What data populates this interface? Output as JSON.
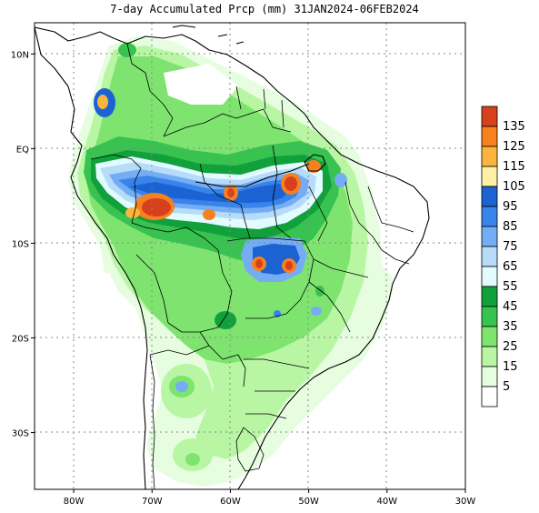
{
  "title": "7-day Accumulated Prcp (mm) 31JAN2024-06FEB2024",
  "x_ticks": [
    {
      "label": "80W",
      "lon": -80
    },
    {
      "label": "70W",
      "lon": -70
    },
    {
      "label": "60W",
      "lon": -60
    },
    {
      "label": "50W",
      "lon": -50
    },
    {
      "label": "40W",
      "lon": -40
    },
    {
      "label": "30W",
      "lon": -30
    }
  ],
  "y_ticks": [
    {
      "label": "10N",
      "lat": 10
    },
    {
      "label": "EQ",
      "lat": 0
    },
    {
      "label": "10S",
      "lat": -10
    },
    {
      "label": "20S",
      "lat": -20
    },
    {
      "label": "30S",
      "lat": -30
    }
  ],
  "legend": {
    "levels": [
      {
        "label": "135",
        "color": "#d7401c"
      },
      {
        "label": "125",
        "color": "#f7801f"
      },
      {
        "label": "115",
        "color": "#fbb43d"
      },
      {
        "label": "105",
        "color": "#fff0a4"
      },
      {
        "label": "95",
        "color": "#1b62d3"
      },
      {
        "label": "85",
        "color": "#3984ea"
      },
      {
        "label": "75",
        "color": "#74adf4"
      },
      {
        "label": "65",
        "color": "#b6dcfa"
      },
      {
        "label": "55",
        "color": "#e2fbff"
      },
      {
        "label": "45",
        "color": "#11a03b"
      },
      {
        "label": "35",
        "color": "#38c24f"
      },
      {
        "label": "25",
        "color": "#7ee46f"
      },
      {
        "label": "15",
        "color": "#b8f6a4"
      },
      {
        "label": "5",
        "color": "#e6fde0"
      },
      {
        "label": "",
        "color": "#ffffff"
      }
    ]
  }
}
